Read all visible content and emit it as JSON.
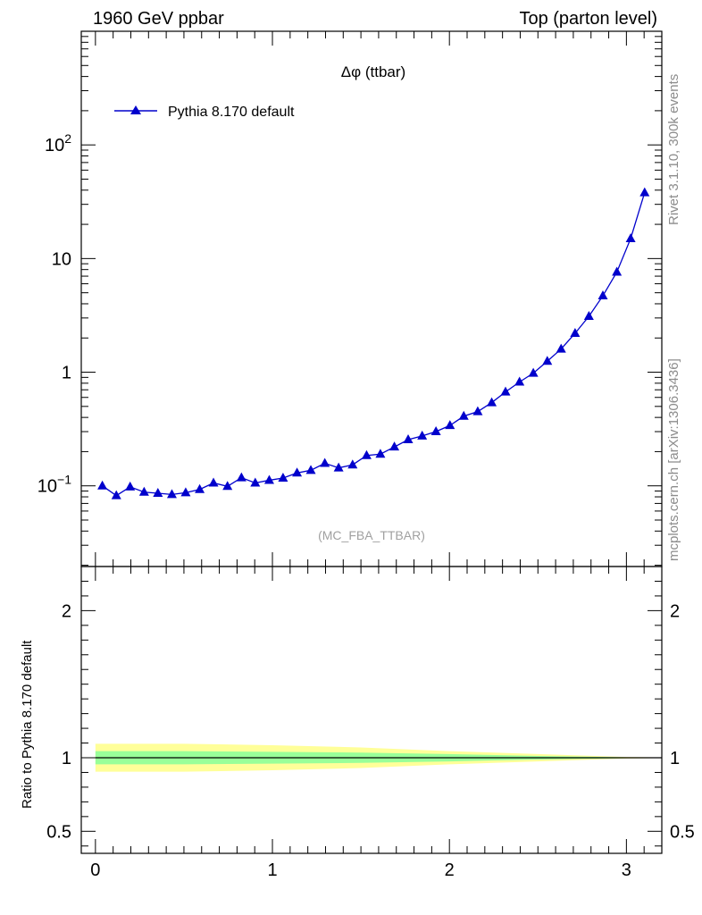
{
  "header": {
    "left": "1960 GeV ppbar",
    "right": "Top (parton level)"
  },
  "side_labels": {
    "rivet": "Rivet 3.1.10,  300k events",
    "mcplots": "mcplots.cern.ch [arXiv:1306.3436]"
  },
  "chart_data": [
    {
      "type": "line",
      "title": "Δφ (ttbar)",
      "watermark": "(MC_FBA_TTBAR)",
      "yscale": "log",
      "xlim": [
        -0.08,
        3.2
      ],
      "ylim": [
        0.0195,
        1000
      ],
      "y_tick_labels": [
        "10^-1",
        "1",
        "10",
        "10^2"
      ],
      "legend": {
        "placement": "top-left",
        "marker": "triangle"
      },
      "series": [
        {
          "name": "Pythia 8.170 default",
          "color": "#0000cc",
          "marker": "triangle",
          "x": [
            0.039,
            0.118,
            0.196,
            0.275,
            0.353,
            0.432,
            0.51,
            0.589,
            0.667,
            0.746,
            0.825,
            0.903,
            0.982,
            1.06,
            1.139,
            1.217,
            1.296,
            1.374,
            1.453,
            1.532,
            1.61,
            1.689,
            1.767,
            1.846,
            1.924,
            2.003,
            2.081,
            2.16,
            2.239,
            2.317,
            2.396,
            2.474,
            2.553,
            2.631,
            2.71,
            2.788,
            2.867,
            2.946,
            3.024,
            3.103
          ],
          "y": [
            0.1,
            0.082,
            0.098,
            0.088,
            0.086,
            0.084,
            0.087,
            0.093,
            0.106,
            0.099,
            0.118,
            0.106,
            0.112,
            0.117,
            0.13,
            0.137,
            0.158,
            0.144,
            0.153,
            0.185,
            0.19,
            0.22,
            0.255,
            0.275,
            0.3,
            0.34,
            0.41,
            0.45,
            0.54,
            0.67,
            0.82,
            0.98,
            1.25,
            1.6,
            2.2,
            3.1,
            4.7,
            7.6,
            15,
            38
          ]
        }
      ]
    },
    {
      "type": "area",
      "ylabel": "Ratio to Pythia 8.170 default",
      "xlim": [
        -0.08,
        3.2
      ],
      "ylim": [
        0.35,
        2.3
      ],
      "x_ticks": [
        0,
        1,
        2,
        3
      ],
      "y_ticks": [
        0.5,
        1,
        2
      ],
      "y_tick_labels": [
        "0.5",
        "1",
        "2"
      ],
      "reference_line": 1,
      "bands": [
        {
          "name": "",
          "color": "#ffff99",
          "x": [
            0.0,
            0.5,
            1.0,
            1.5,
            2.0,
            2.5,
            3.0,
            3.2
          ],
          "lo": [
            0.905,
            0.905,
            0.915,
            0.93,
            0.955,
            0.975,
            0.995,
            0.998
          ],
          "hi": [
            1.095,
            1.095,
            1.085,
            1.07,
            1.045,
            1.025,
            1.005,
            1.002
          ]
        },
        {
          "name": "",
          "color": "#99ff99",
          "x": [
            0.0,
            0.5,
            1.0,
            1.5,
            2.0,
            2.5,
            3.0,
            3.2
          ],
          "lo": [
            0.955,
            0.955,
            0.96,
            0.965,
            0.975,
            0.988,
            0.997,
            0.999
          ],
          "hi": [
            1.045,
            1.045,
            1.04,
            1.035,
            1.025,
            1.012,
            1.003,
            1.001
          ]
        }
      ]
    }
  ]
}
